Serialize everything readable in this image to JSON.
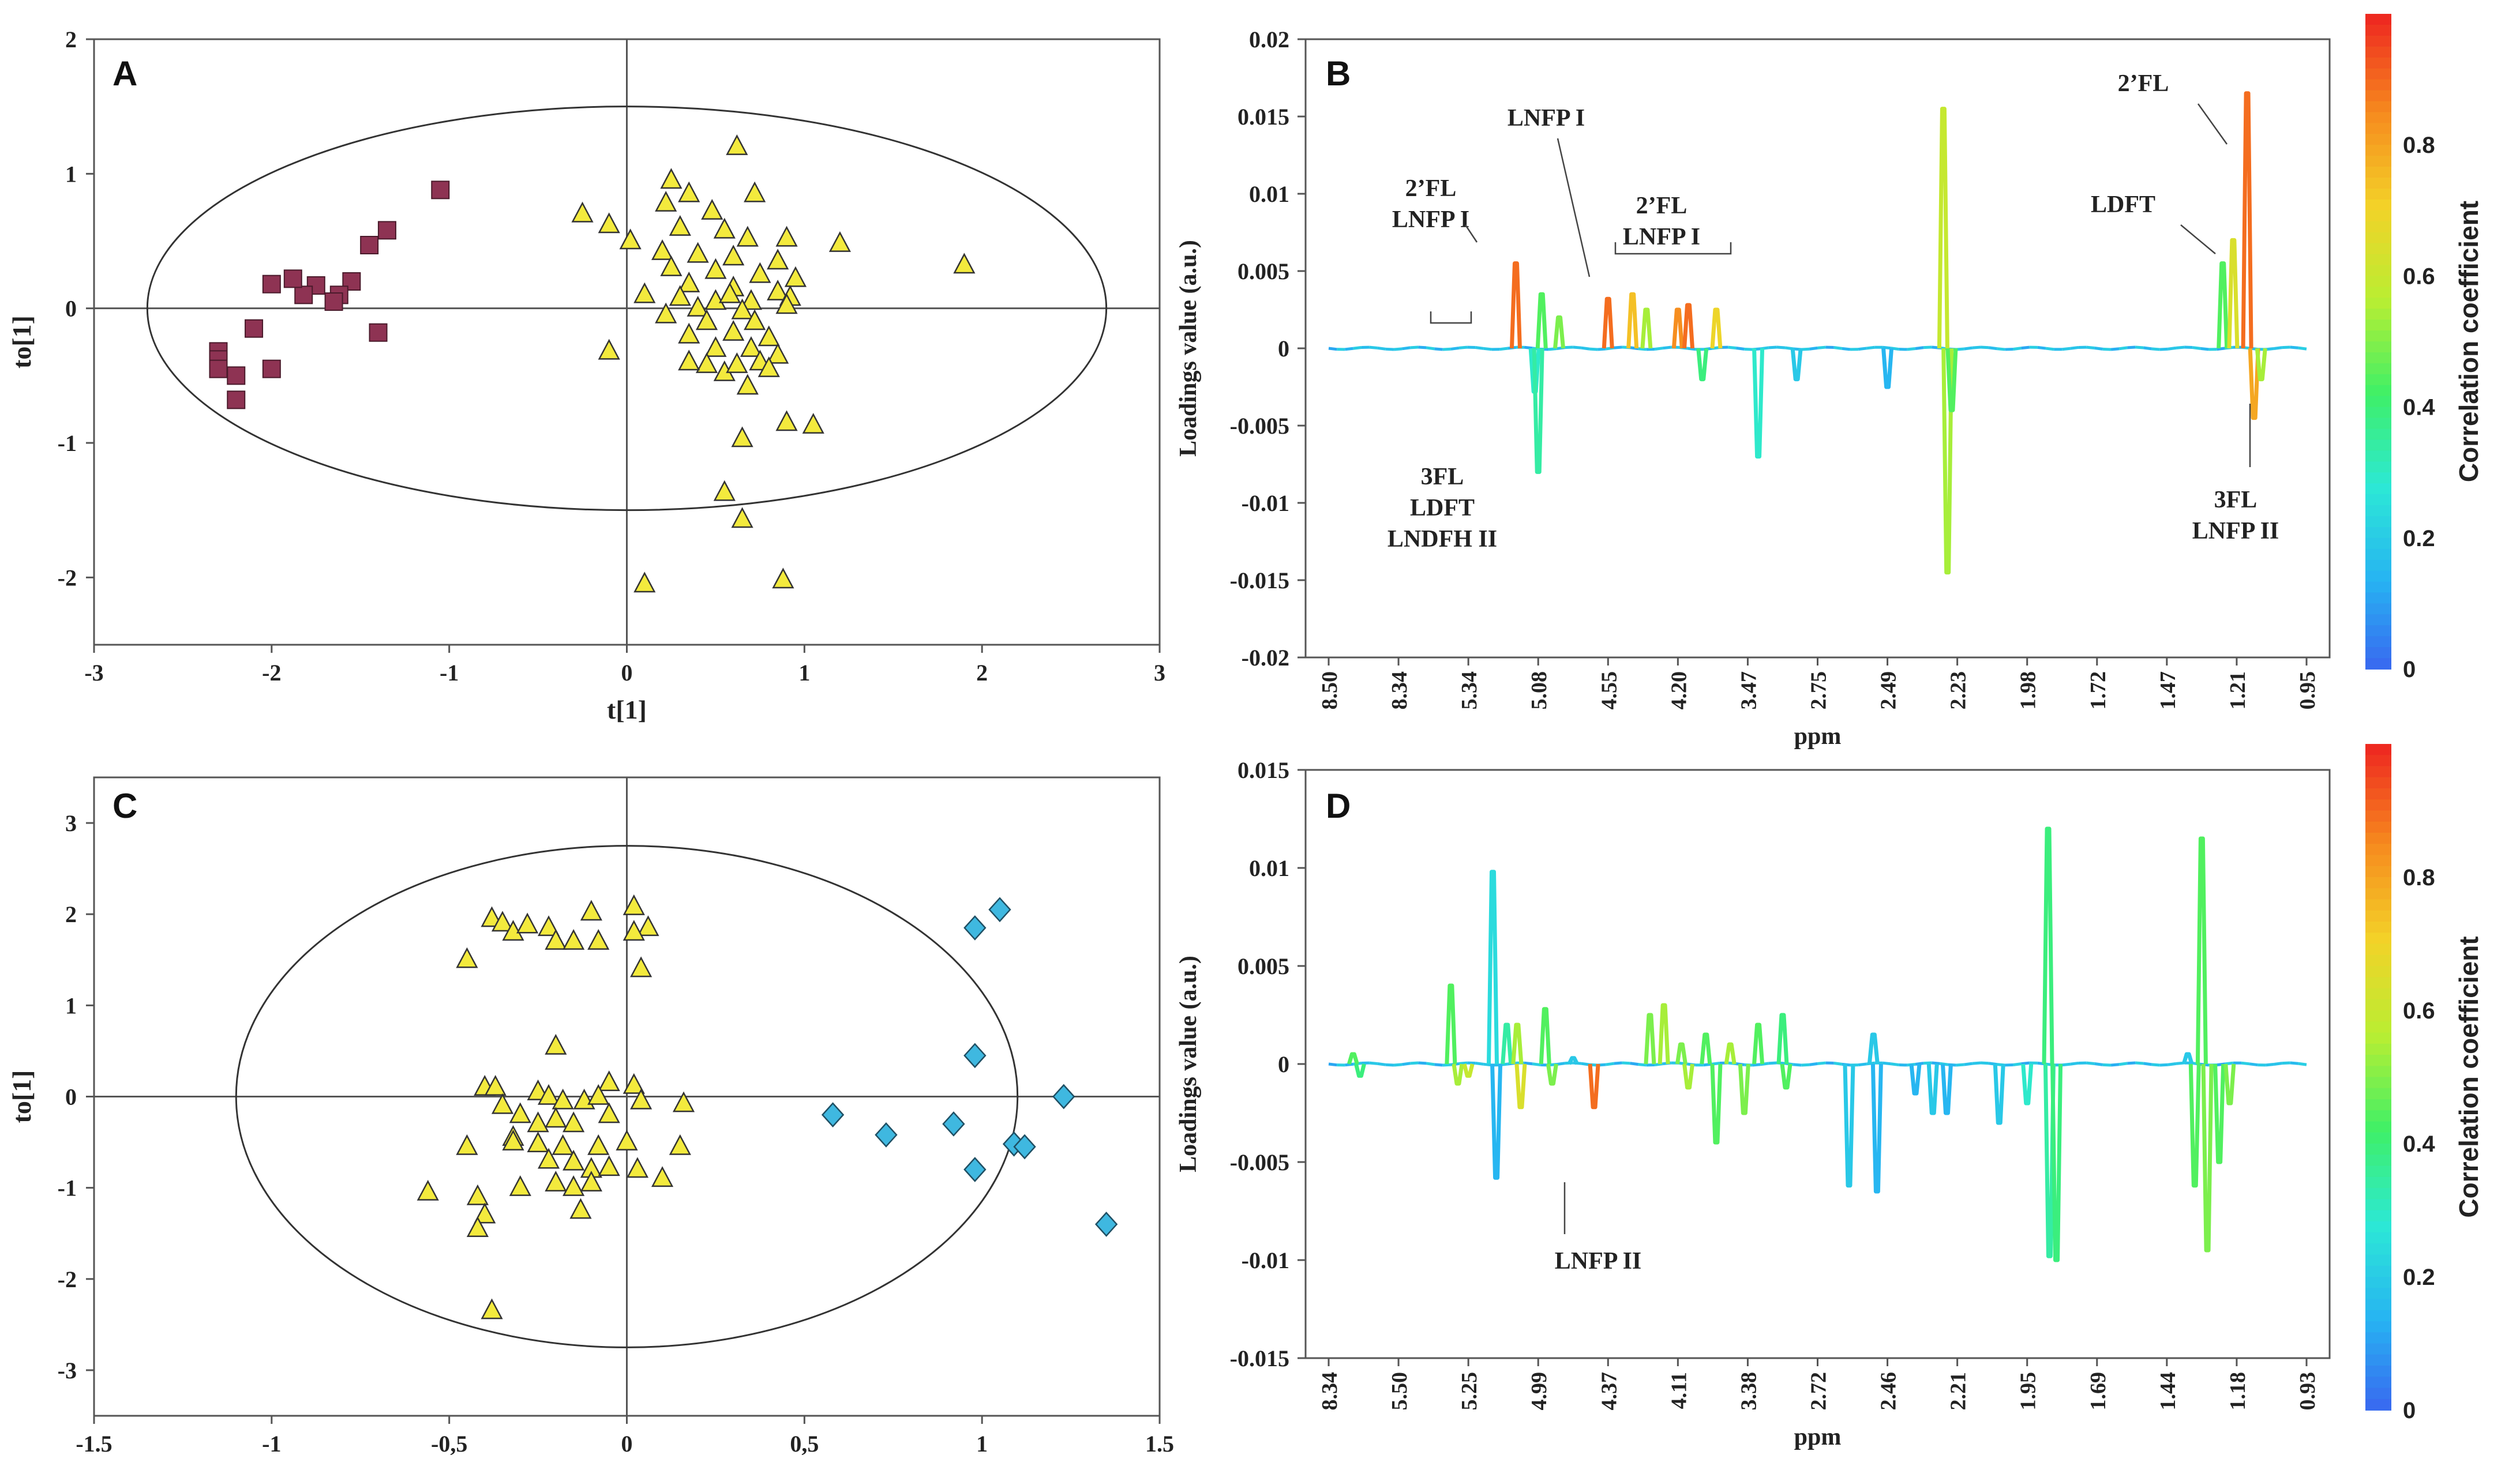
{
  "colors": {
    "square_fill": "#8e3353",
    "triangle_fill": "#f3ea3d",
    "diamond_fill": "#3fb8e0",
    "colorbar": [
      "#3a63f0",
      "#27b3f2",
      "#2ce8d6",
      "#3ff067",
      "#b9ee32",
      "#f3d228",
      "#f68a1e",
      "#ee2a20"
    ]
  },
  "chart_data": [
    {
      "panel": "A",
      "type": "scatter",
      "xlabel": "t[1]",
      "ylabel": "to[1]",
      "xlim": [
        -3,
        3
      ],
      "ylim": [
        -2.5,
        2
      ],
      "x_ticks": [
        "-3",
        "-2",
        "-1",
        "0",
        "1",
        "2",
        "3"
      ],
      "y_ticks": [
        "2",
        "1",
        "0",
        "-1",
        "-2"
      ],
      "ellipse": {
        "cx": 0,
        "cy": 0,
        "rx": 2.7,
        "ry": 1.5
      },
      "series": [
        {
          "marker": "square",
          "points": [
            [
              -1.05,
              0.88
            ],
            [
              -1.35,
              0.58
            ],
            [
              -1.45,
              0.47
            ],
            [
              -1.55,
              0.2
            ],
            [
              -1.62,
              0.1
            ],
            [
              -1.65,
              0.05
            ],
            [
              -1.75,
              0.17
            ],
            [
              -1.82,
              0.1
            ],
            [
              -1.88,
              0.22
            ],
            [
              -2.0,
              0.18
            ],
            [
              -2.1,
              -0.15
            ],
            [
              -1.4,
              -0.18
            ],
            [
              -2.3,
              -0.32
            ],
            [
              -2.3,
              -0.38
            ],
            [
              -2.3,
              -0.45
            ],
            [
              -2.2,
              -0.5
            ],
            [
              -2.0,
              -0.45
            ],
            [
              -2.2,
              -0.68
            ]
          ]
        },
        {
          "marker": "triangle",
          "points": [
            [
              0.62,
              1.2
            ],
            [
              0.25,
              0.95
            ],
            [
              0.35,
              0.85
            ],
            [
              0.72,
              0.85
            ],
            [
              0.22,
              0.78
            ],
            [
              -0.25,
              0.7
            ],
            [
              -0.1,
              0.62
            ],
            [
              0.48,
              0.72
            ],
            [
              0.3,
              0.6
            ],
            [
              0.55,
              0.58
            ],
            [
              0.68,
              0.52
            ],
            [
              0.9,
              0.52
            ],
            [
              1.2,
              0.48
            ],
            [
              0.02,
              0.5
            ],
            [
              0.2,
              0.42
            ],
            [
              0.4,
              0.4
            ],
            [
              0.6,
              0.38
            ],
            [
              0.85,
              0.35
            ],
            [
              1.9,
              0.32
            ],
            [
              0.25,
              0.3
            ],
            [
              0.5,
              0.28
            ],
            [
              0.75,
              0.25
            ],
            [
              0.95,
              0.22
            ],
            [
              0.35,
              0.18
            ],
            [
              0.6,
              0.15
            ],
            [
              0.85,
              0.12
            ],
            [
              0.3,
              0.08
            ],
            [
              0.5,
              0.05
            ],
            [
              0.7,
              0.05
            ],
            [
              0.92,
              0.08
            ],
            [
              0.1,
              0.1
            ],
            [
              0.58,
              0.1
            ],
            [
              0.4,
              0.0
            ],
            [
              0.65,
              -0.02
            ],
            [
              0.9,
              0.02
            ],
            [
              0.22,
              -0.05
            ],
            [
              0.45,
              -0.1
            ],
            [
              0.72,
              -0.1
            ],
            [
              0.35,
              -0.2
            ],
            [
              0.6,
              -0.18
            ],
            [
              0.8,
              -0.22
            ],
            [
              0.5,
              -0.3
            ],
            [
              0.7,
              -0.3
            ],
            [
              0.85,
              -0.35
            ],
            [
              -0.1,
              -0.32
            ],
            [
              0.45,
              -0.42
            ],
            [
              0.55,
              -0.48
            ],
            [
              0.35,
              -0.4
            ],
            [
              0.75,
              -0.4
            ],
            [
              0.8,
              -0.45
            ],
            [
              0.62,
              -0.42
            ],
            [
              0.68,
              -0.58
            ],
            [
              0.9,
              -0.85
            ],
            [
              1.05,
              -0.87
            ],
            [
              0.65,
              -0.97
            ],
            [
              0.55,
              -1.37
            ],
            [
              0.65,
              -1.57
            ],
            [
              0.88,
              -2.02
            ],
            [
              0.1,
              -2.05
            ]
          ]
        }
      ]
    },
    {
      "panel": "B",
      "type": "line",
      "xlabel": "ppm",
      "ylabel": "Loadings value (a.u.)",
      "ylim": [
        -0.02,
        0.02
      ],
      "y_ticks": [
        "0.02",
        "0.015",
        "0.01",
        "0.005",
        "0",
        "-0.005",
        "-0.01",
        "-0.015",
        "-0.02"
      ],
      "x_ticks": [
        "8.50",
        "8.34",
        "5.34",
        "5.08",
        "4.55",
        "4.20",
        "3.47",
        "2.75",
        "2.49",
        "2.23",
        "1.98",
        "1.72",
        "1.47",
        "1.21",
        "0.95"
      ],
      "colorbar": {
        "label": "Correlation coefficient",
        "range": [
          0,
          1
        ],
        "ticks": [
          "0.8",
          "0.6",
          "0.4",
          "0.2",
          "0"
        ]
      },
      "annotations": [
        {
          "lines": [
            "2’FL",
            "LNFP I"
          ],
          "peak_idx": 0.3
        },
        {
          "lines": [
            "LNFP I"
          ],
          "peak_idx": 4.3
        },
        {
          "lines": [
            "2’FL",
            "LNFP I"
          ],
          "peak_idx": 5.5
        },
        {
          "lines": [
            "3FL",
            "LDFT",
            "LNDFH II"
          ],
          "peak_idx": 2.4
        },
        {
          "lines": [
            "2’FL"
          ],
          "peak_idx": 13.2
        },
        {
          "lines": [
            "LDFT"
          ],
          "peak_idx": 13.05
        },
        {
          "lines": [
            "3FL",
            "LNFP II"
          ],
          "peak_idx": 13.35
        }
      ],
      "peaks": [
        {
          "i": 2.68,
          "v": 0.0055,
          "c": 0.9
        },
        {
          "i": 2.95,
          "v": -0.0028,
          "c": 0.3
        },
        {
          "i": 3.0,
          "v": -0.008,
          "c": 0.35
        },
        {
          "i": 3.05,
          "v": 0.0035,
          "c": 0.45
        },
        {
          "i": 3.3,
          "v": 0.002,
          "c": 0.5
        },
        {
          "i": 4.0,
          "v": 0.0032,
          "c": 0.9
        },
        {
          "i": 4.35,
          "v": 0.0035,
          "c": 0.75
        },
        {
          "i": 4.55,
          "v": 0.0025,
          "c": 0.55
        },
        {
          "i": 5.0,
          "v": 0.0025,
          "c": 0.85
        },
        {
          "i": 5.15,
          "v": 0.0028,
          "c": 0.9
        },
        {
          "i": 5.35,
          "v": -0.002,
          "c": 0.4
        },
        {
          "i": 5.55,
          "v": 0.0025,
          "c": 0.7
        },
        {
          "i": 6.15,
          "v": -0.007,
          "c": 0.3
        },
        {
          "i": 6.7,
          "v": -0.002,
          "c": 0.2
        },
        {
          "i": 8.0,
          "v": -0.0025,
          "c": 0.15
        },
        {
          "i": 8.8,
          "v": 0.0155,
          "c": 0.6
        },
        {
          "i": 8.86,
          "v": -0.0145,
          "c": 0.55
        },
        {
          "i": 8.92,
          "v": -0.004,
          "c": 0.45
        },
        {
          "i": 12.8,
          "v": 0.0055,
          "c": 0.45
        },
        {
          "i": 12.95,
          "v": 0.007,
          "c": 0.65
        },
        {
          "i": 13.15,
          "v": 0.0165,
          "c": 0.9
        },
        {
          "i": 13.25,
          "v": -0.0045,
          "c": 0.8
        },
        {
          "i": 13.35,
          "v": -0.002,
          "c": 0.55
        }
      ]
    },
    {
      "panel": "C",
      "type": "scatter",
      "xlabel": "t[1]",
      "ylabel": "to[1]",
      "xlim": [
        -1.5,
        1.5
      ],
      "ylim": [
        -3.5,
        3.5
      ],
      "x_ticks": [
        "-1.5",
        "-1",
        "-0,5",
        "0",
        "0,5",
        "1",
        "1.5"
      ],
      "y_ticks": [
        "3",
        "2",
        "1",
        "0",
        "-1",
        "-2",
        "-3"
      ],
      "ellipse": {
        "cx": 0,
        "cy": 0,
        "rx": 1.1,
        "ry": 2.75
      },
      "series": [
        {
          "marker": "triangle",
          "points": [
            [
              -0.38,
              1.95
            ],
            [
              -0.35,
              1.9
            ],
            [
              -0.32,
              1.8
            ],
            [
              -0.28,
              1.88
            ],
            [
              -0.22,
              1.85
            ],
            [
              -0.1,
              2.02
            ],
            [
              0.02,
              2.08
            ],
            [
              0.06,
              1.85
            ],
            [
              0.02,
              1.8
            ],
            [
              -0.2,
              1.7
            ],
            [
              -0.15,
              1.7
            ],
            [
              -0.08,
              1.7
            ],
            [
              -0.45,
              1.5
            ],
            [
              0.04,
              1.4
            ],
            [
              -0.2,
              0.55
            ],
            [
              -0.4,
              0.1
            ],
            [
              -0.37,
              0.1
            ],
            [
              -0.25,
              0.05
            ],
            [
              -0.05,
              0.15
            ],
            [
              0.02,
              0.12
            ],
            [
              -0.22,
              0.0
            ],
            [
              -0.18,
              -0.05
            ],
            [
              -0.12,
              -0.05
            ],
            [
              -0.08,
              0.0
            ],
            [
              0.04,
              -0.05
            ],
            [
              0.16,
              -0.08
            ],
            [
              -0.35,
              -0.1
            ],
            [
              -0.3,
              -0.2
            ],
            [
              -0.25,
              -0.3
            ],
            [
              -0.2,
              -0.25
            ],
            [
              -0.15,
              -0.3
            ],
            [
              -0.05,
              -0.2
            ],
            [
              -0.32,
              -0.45
            ],
            [
              -0.45,
              -0.55
            ],
            [
              -0.32,
              -0.5
            ],
            [
              -0.25,
              -0.52
            ],
            [
              -0.18,
              -0.55
            ],
            [
              -0.08,
              -0.55
            ],
            [
              0.0,
              -0.5
            ],
            [
              0.15,
              -0.55
            ],
            [
              -0.22,
              -0.7
            ],
            [
              -0.15,
              -0.72
            ],
            [
              -0.1,
              -0.8
            ],
            [
              -0.05,
              -0.78
            ],
            [
              0.03,
              -0.8
            ],
            [
              -0.42,
              -1.1
            ],
            [
              -0.3,
              -1.0
            ],
            [
              -0.2,
              -0.95
            ],
            [
              -0.15,
              -1.0
            ],
            [
              -0.1,
              -0.95
            ],
            [
              0.1,
              -0.9
            ],
            [
              -0.4,
              -1.3
            ],
            [
              -0.13,
              -1.25
            ],
            [
              -0.56,
              -1.05
            ],
            [
              -0.42,
              -1.45
            ],
            [
              -0.38,
              -2.35
            ]
          ]
        },
        {
          "marker": "diamond",
          "points": [
            [
              1.05,
              2.05
            ],
            [
              0.98,
              1.85
            ],
            [
              0.98,
              0.45
            ],
            [
              1.23,
              0.0
            ],
            [
              0.58,
              -0.2
            ],
            [
              0.73,
              -0.42
            ],
            [
              0.92,
              -0.3
            ],
            [
              1.09,
              -0.52
            ],
            [
              1.12,
              -0.55
            ],
            [
              0.98,
              -0.8
            ],
            [
              1.35,
              -1.4
            ]
          ]
        }
      ]
    },
    {
      "panel": "D",
      "type": "line",
      "xlabel": "ppm",
      "ylabel": "Loadings value (a.u.)",
      "ylim": [
        -0.015,
        0.015
      ],
      "y_ticks": [
        "0.015",
        "0.01",
        "0.005",
        "0",
        "-0.005",
        "-0.01",
        "-0.015"
      ],
      "x_ticks": [
        "8.34",
        "5.50",
        "5.25",
        "4.99",
        "4.37",
        "4.11",
        "3.38",
        "2.72",
        "2.46",
        "2.21",
        "1.95",
        "1.69",
        "1.44",
        "1.18",
        "0.93"
      ],
      "colorbar": {
        "label": "Correlation coefficient",
        "range": [
          0,
          1
        ],
        "ticks": [
          "0.8",
          "0.6",
          "0.4",
          "0.2",
          "0"
        ]
      },
      "annotations": [
        {
          "lines": [
            "LNFP II"
          ],
          "peak_idx": 3.8
        }
      ],
      "peaks": [
        {
          "i": 0.35,
          "v": 0.0005,
          "c": 0.45
        },
        {
          "i": 0.45,
          "v": -0.0006,
          "c": 0.4
        },
        {
          "i": 1.75,
          "v": 0.004,
          "c": 0.45
        },
        {
          "i": 1.85,
          "v": -0.001,
          "c": 0.55
        },
        {
          "i": 2.0,
          "v": -0.0006,
          "c": 0.6
        },
        {
          "i": 2.35,
          "v": 0.0098,
          "c": 0.25
        },
        {
          "i": 2.4,
          "v": -0.0058,
          "c": 0.15
        },
        {
          "i": 2.55,
          "v": 0.002,
          "c": 0.35
        },
        {
          "i": 2.7,
          "v": 0.002,
          "c": 0.55
        },
        {
          "i": 2.75,
          "v": -0.0022,
          "c": 0.65
        },
        {
          "i": 3.1,
          "v": 0.0028,
          "c": 0.45
        },
        {
          "i": 3.2,
          "v": -0.001,
          "c": 0.5
        },
        {
          "i": 3.5,
          "v": 0.0003,
          "c": 0.2
        },
        {
          "i": 3.8,
          "v": -0.0022,
          "c": 0.9
        },
        {
          "i": 4.6,
          "v": 0.0025,
          "c": 0.5
        },
        {
          "i": 4.8,
          "v": 0.003,
          "c": 0.55
        },
        {
          "i": 5.05,
          "v": 0.001,
          "c": 0.5
        },
        {
          "i": 5.15,
          "v": -0.0012,
          "c": 0.55
        },
        {
          "i": 5.4,
          "v": 0.0015,
          "c": 0.45
        },
        {
          "i": 5.55,
          "v": -0.004,
          "c": 0.45
        },
        {
          "i": 5.75,
          "v": 0.001,
          "c": 0.55
        },
        {
          "i": 5.95,
          "v": -0.0025,
          "c": 0.5
        },
        {
          "i": 6.15,
          "v": 0.002,
          "c": 0.45
        },
        {
          "i": 6.5,
          "v": 0.0025,
          "c": 0.4
        },
        {
          "i": 6.55,
          "v": -0.0012,
          "c": 0.45
        },
        {
          "i": 7.45,
          "v": -0.0062,
          "c": 0.2
        },
        {
          "i": 7.8,
          "v": 0.0015,
          "c": 0.2
        },
        {
          "i": 7.85,
          "v": -0.0065,
          "c": 0.15
        },
        {
          "i": 8.4,
          "v": -0.0015,
          "c": 0.15
        },
        {
          "i": 8.65,
          "v": -0.0025,
          "c": 0.2
        },
        {
          "i": 8.85,
          "v": -0.0025,
          "c": 0.15
        },
        {
          "i": 9.6,
          "v": -0.003,
          "c": 0.2
        },
        {
          "i": 10.0,
          "v": -0.002,
          "c": 0.3
        },
        {
          "i": 10.3,
          "v": 0.012,
          "c": 0.4
        },
        {
          "i": 10.32,
          "v": -0.0098,
          "c": 0.35
        },
        {
          "i": 10.42,
          "v": -0.01,
          "c": 0.4
        },
        {
          "i": 12.3,
          "v": 0.0005,
          "c": 0.2
        },
        {
          "i": 12.4,
          "v": -0.0062,
          "c": 0.45
        },
        {
          "i": 12.5,
          "v": 0.0115,
          "c": 0.45
        },
        {
          "i": 12.58,
          "v": -0.0095,
          "c": 0.5
        },
        {
          "i": 12.75,
          "v": -0.005,
          "c": 0.45
        },
        {
          "i": 12.9,
          "v": -0.002,
          "c": 0.5
        }
      ]
    }
  ]
}
